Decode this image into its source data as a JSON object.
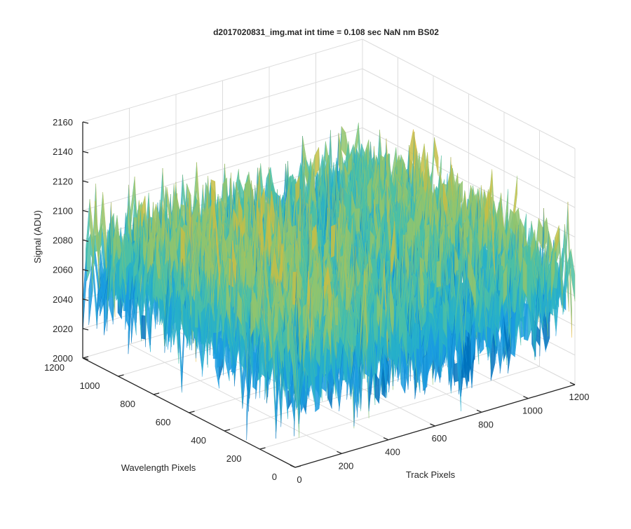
{
  "chart_data": {
    "type": "surface",
    "title": "d2017020831_img.mat int time = 0.108 sec  NaN nm BS02",
    "xlabel": "Track Pixels",
    "ylabel": "Wavelength Pixels",
    "zlabel": "Signal (ADU)",
    "xlim": [
      0,
      1200
    ],
    "ylim": [
      0,
      1200
    ],
    "zlim": [
      2000,
      2160
    ],
    "xticks": [
      0,
      200,
      400,
      600,
      800,
      1000,
      1200
    ],
    "yticks": [
      0,
      200,
      400,
      600,
      800,
      1000,
      1200
    ],
    "zticks": [
      2000,
      2020,
      2040,
      2060,
      2080,
      2100,
      2120,
      2140,
      2160
    ],
    "grid": true,
    "colormap": "parula",
    "surface": {
      "x_extent": [
        0,
        1200
      ],
      "y_extent": [
        0,
        1200
      ],
      "mean_signal": 2075,
      "noise_range": [
        2015,
        2150
      ],
      "peak_signal": 2150,
      "min_signal": 2010
    },
    "colors": [
      "#0072bd",
      "#1a9be0",
      "#27b0c9",
      "#4cbfa5",
      "#8fc46e",
      "#c6be45",
      "#e8b93a"
    ]
  }
}
